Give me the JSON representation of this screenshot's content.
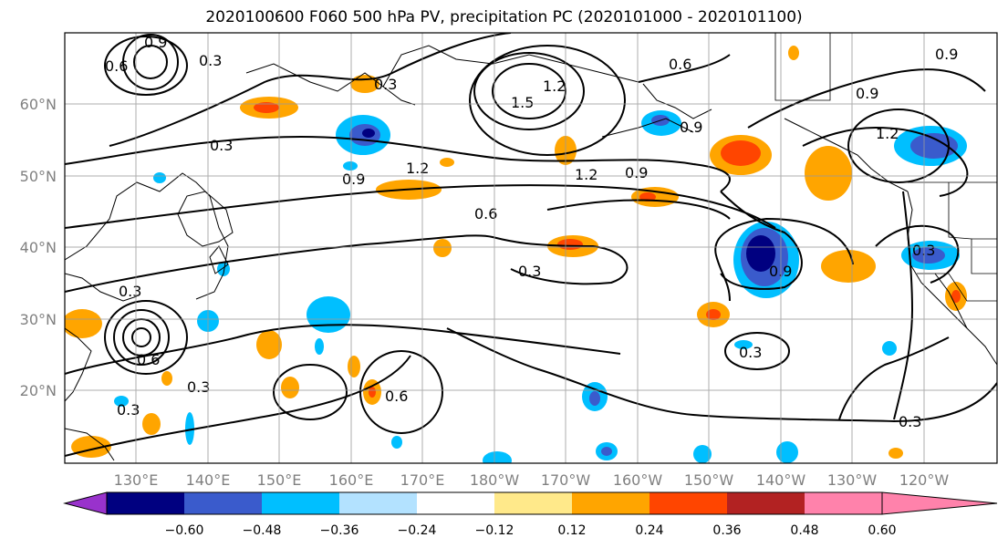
{
  "title": "2020100600 F060 500 hPa PV, precipitation PC (2020101000 - 2020101100)",
  "lat_labels": [
    "60°N",
    "50°N",
    "40°N",
    "30°N",
    "20°N"
  ],
  "lon_labels": [
    "130°E",
    "140°E",
    "150°E",
    "160°E",
    "170°E",
    "180°W",
    "170°W",
    "160°W",
    "150°W",
    "140°W",
    "130°W",
    "120°W"
  ],
  "colorbar": {
    "tick_labels": [
      "−0.60",
      "−0.48",
      "−0.36",
      "−0.24",
      "−0.12",
      "0.12",
      "0.24",
      "0.36",
      "0.48",
      "0.60"
    ],
    "colors": [
      "#9932cc",
      "#000080",
      "#3a5bcc",
      "#00bfff",
      "#b3e2ff",
      "#ffffff",
      "#ffe98a",
      "#ffa500",
      "#ff4500",
      "#b22222",
      "#ff82ab"
    ]
  },
  "contour_labels": [
    "0.9",
    "0.6",
    "1.2",
    "0.3",
    "1.5",
    "1.2",
    "0.6",
    "0.9",
    "1.2",
    "0.3",
    "0.9",
    "1.2",
    "0.9",
    "0.6",
    "0.3",
    "0.9",
    "0.3",
    "0.3",
    "0.6",
    "0.3",
    "0.3",
    "0.9",
    "0.3",
    "0.6",
    "0.3",
    "0.3",
    "0.9"
  ]
}
